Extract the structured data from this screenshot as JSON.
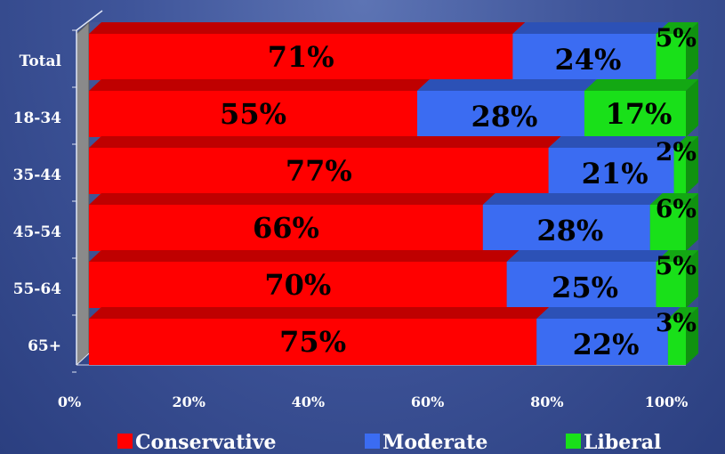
{
  "chart_data": {
    "type": "bar",
    "orientation": "horizontal",
    "stacked": "percent",
    "style": "3d",
    "categories": [
      "Total",
      "18-34",
      "35-44",
      "45-54",
      "55-64",
      "65+"
    ],
    "series": [
      {
        "name": "Conservative",
        "color": "#ff0000",
        "values": [
          71,
          55,
          77,
          66,
          70,
          75
        ],
        "labels": [
          "71%",
          "55%",
          "77%",
          "66%",
          "70%",
          "75%"
        ]
      },
      {
        "name": "Moderate",
        "color": "#3b6cf2",
        "values": [
          24,
          28,
          21,
          28,
          25,
          22
        ],
        "labels": [
          "24%",
          "28%",
          "21%",
          "28%",
          "25%",
          "22%"
        ]
      },
      {
        "name": "Liberal",
        "color": "#19e019",
        "values": [
          5,
          17,
          2,
          6,
          5,
          3
        ],
        "labels": [
          "5%",
          "17%",
          "2%",
          "6%",
          "5%",
          "3%"
        ]
      }
    ],
    "x_ticks": [
      "0%",
      "20%",
      "40%",
      "60%",
      "80%",
      "100%"
    ],
    "xlim": [
      0,
      100
    ],
    "legend_position": "bottom"
  }
}
